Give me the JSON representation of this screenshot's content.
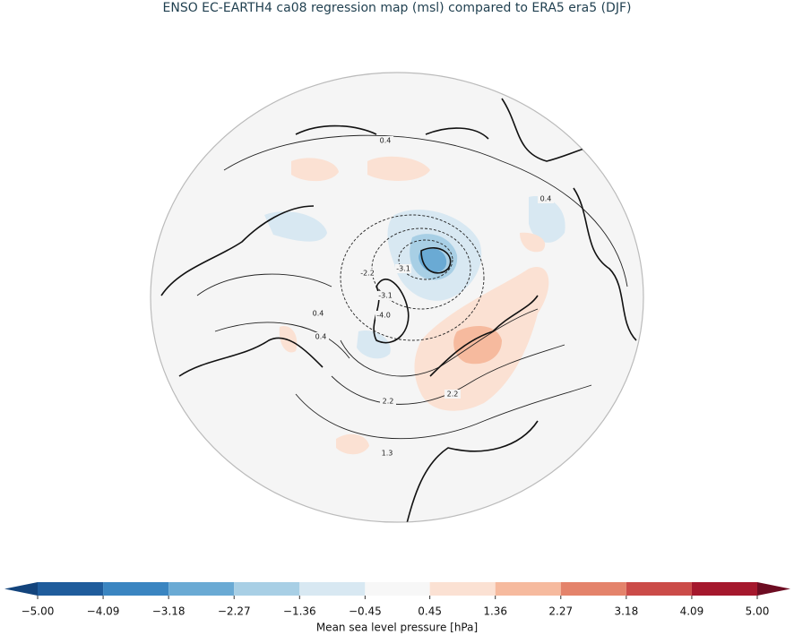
{
  "title": "ENSO EC-EARTH4 ca08 regression map (msl) compared to ERA5 era5 (DJF)",
  "contour_labels": [
    "0.4",
    "0.4",
    "0.4",
    "0.4",
    "-2.2",
    "-3.1",
    "-3.1",
    "-4.0",
    "2.2",
    "2.2",
    "1.3"
  ],
  "colorbar": {
    "label": "Mean sea level pressure [hPa]",
    "lim": [
      -5,
      5
    ],
    "ticks": [
      {
        "value": -5.0,
        "label": "−5.00"
      },
      {
        "value": -4.09,
        "label": "−4.09"
      },
      {
        "value": -3.18,
        "label": "−3.18"
      },
      {
        "value": -2.27,
        "label": "−2.27"
      },
      {
        "value": -1.36,
        "label": "−1.36"
      },
      {
        "value": -0.45,
        "label": "−0.45"
      },
      {
        "value": 0.45,
        "label": "0.45"
      },
      {
        "value": 1.36,
        "label": "1.36"
      },
      {
        "value": 2.27,
        "label": "2.27"
      },
      {
        "value": 3.18,
        "label": "3.18"
      },
      {
        "value": 4.09,
        "label": "4.09"
      },
      {
        "value": 5.0,
        "label": "5.00"
      }
    ],
    "colors": [
      "#1f5c9c",
      "#3a85c1",
      "#6aaad4",
      "#a8cfe5",
      "#d8e8f2",
      "#f7f7f7",
      "#fbe1d3",
      "#f6ba9e",
      "#e4836b",
      "#cb4b48",
      "#a5182d"
    ],
    "under_color": "#13447c",
    "over_color": "#6d0c22"
  }
}
